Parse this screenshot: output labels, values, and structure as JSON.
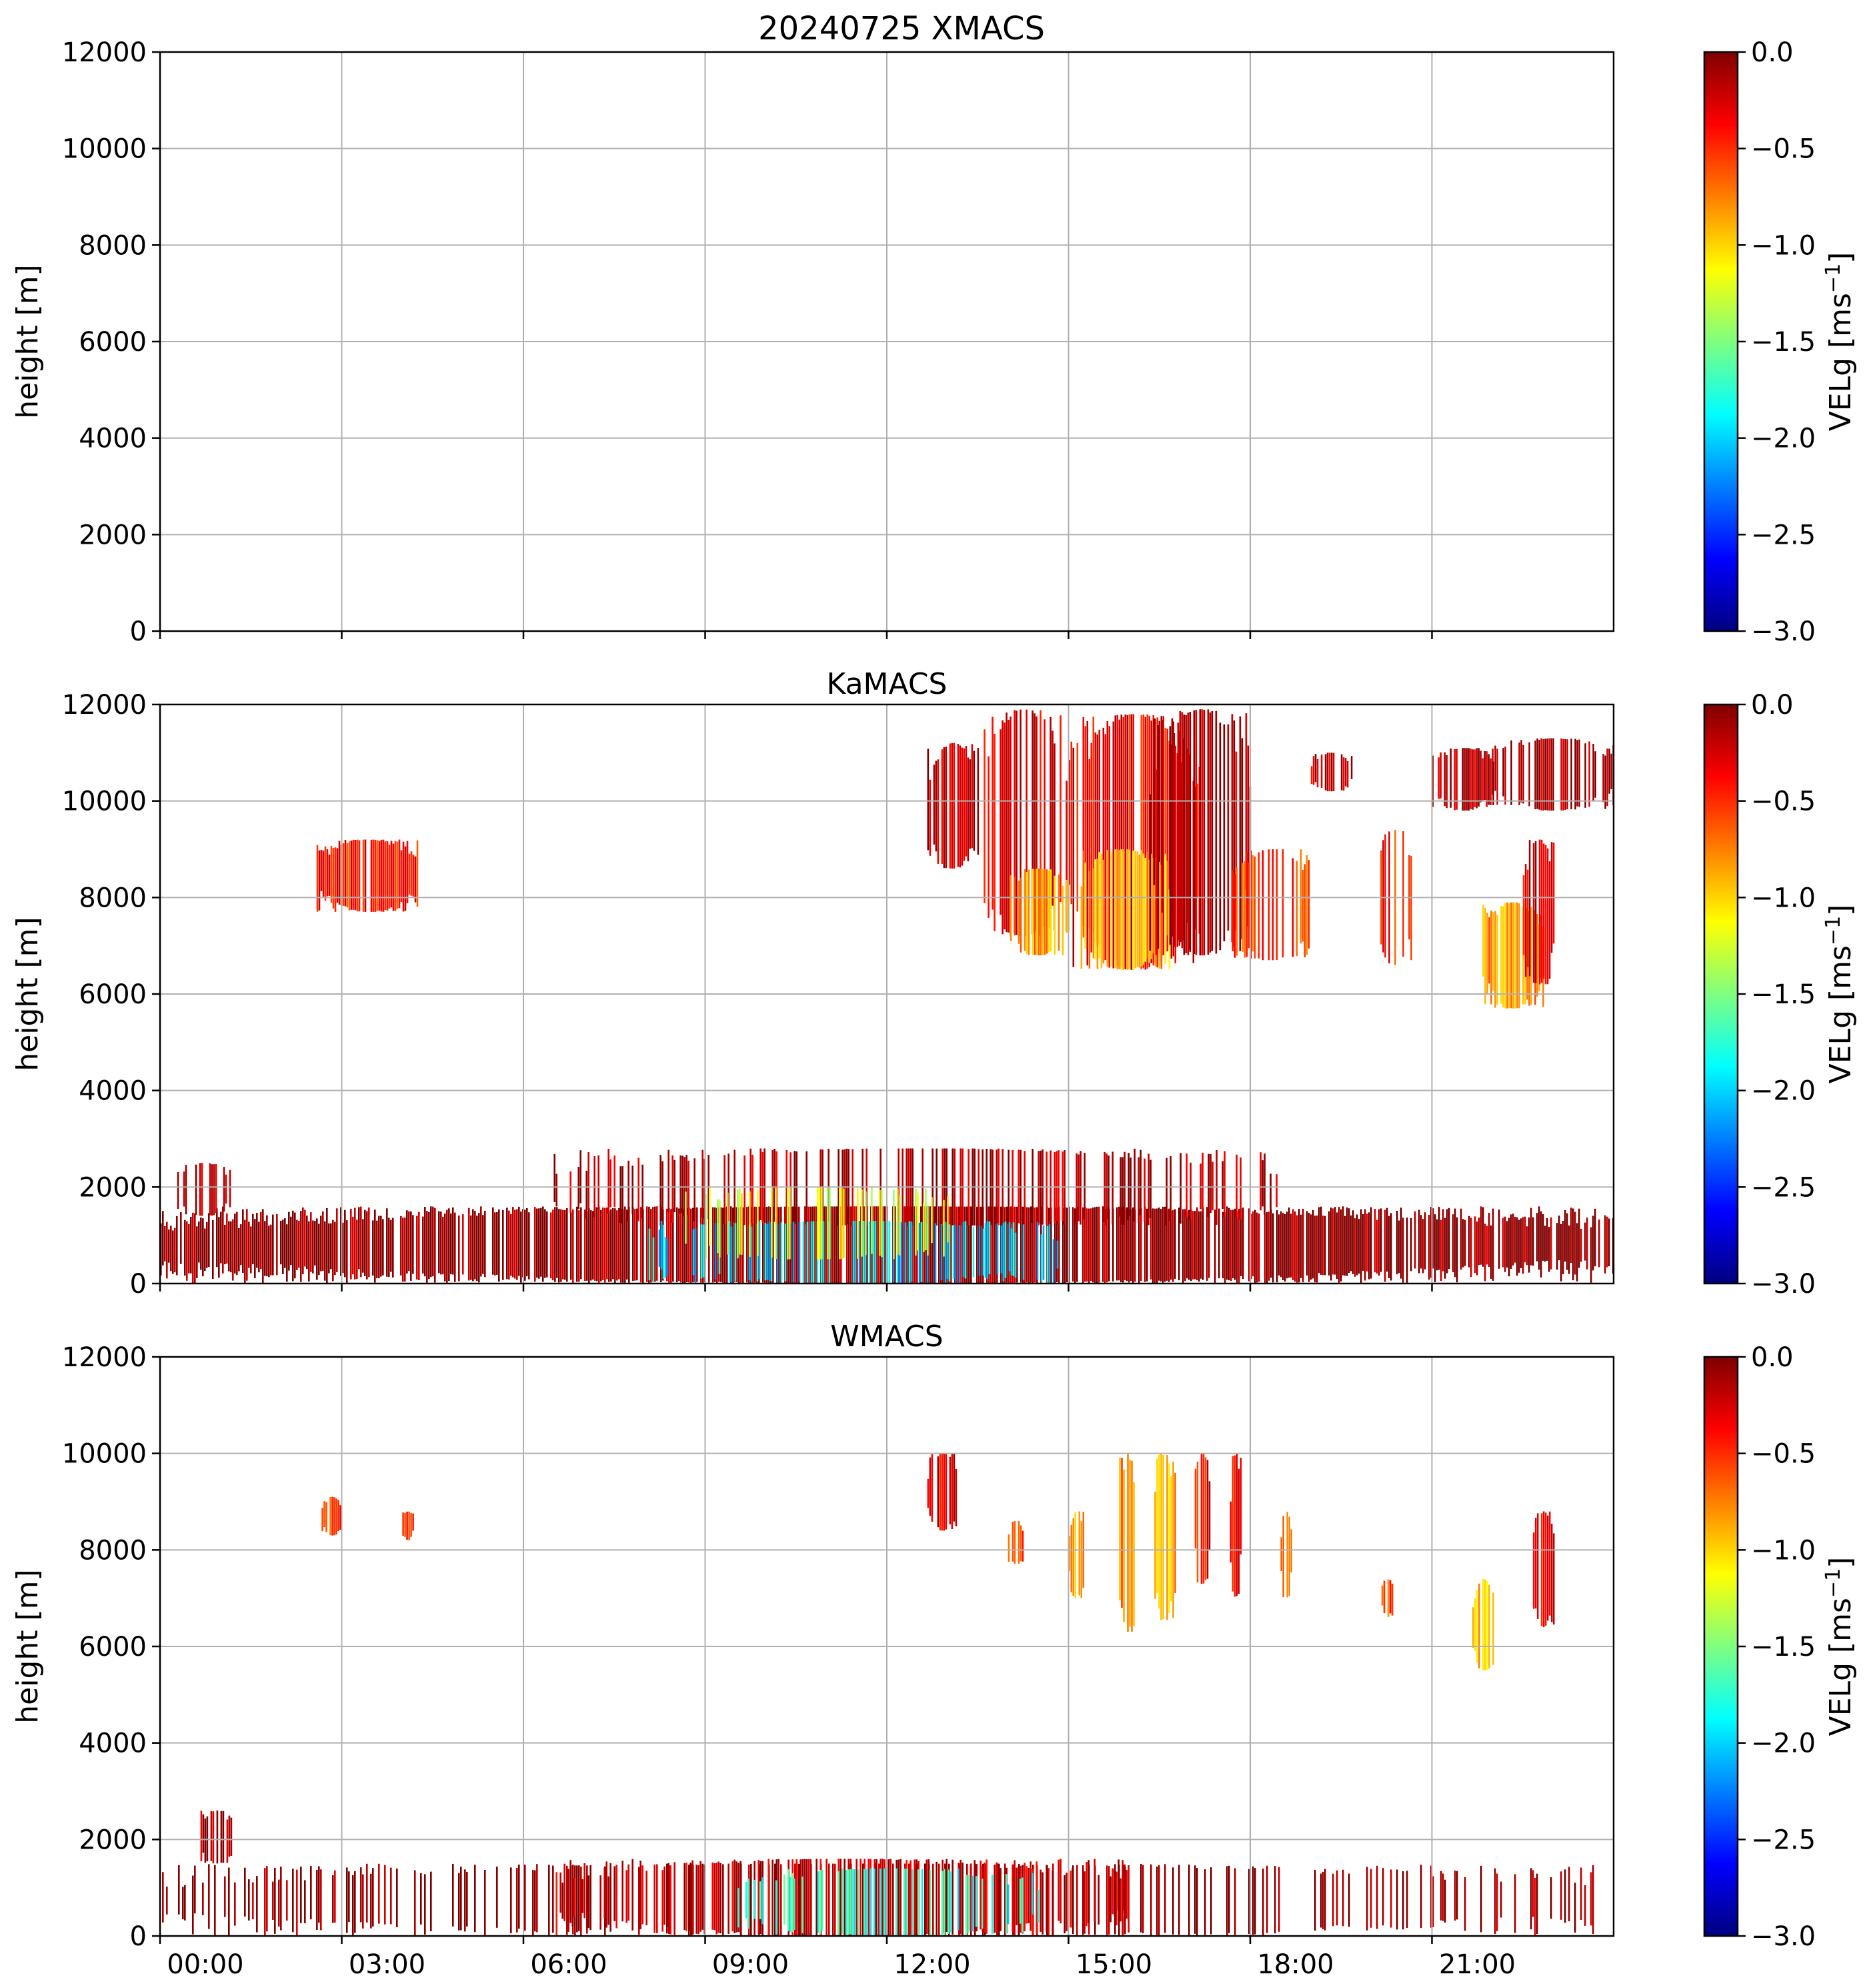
{
  "figure": {
    "title": "20240725 XMACS"
  },
  "colorbar": {
    "label_main": "VELg [ms",
    "label_exp": "−1",
    "label_close": "]",
    "ticks": [
      "0.0",
      "−0.5",
      "−1.0",
      "−1.5",
      "−2.0",
      "−2.5",
      "−3.0"
    ],
    "range": [
      -3.0,
      0.0
    ],
    "colormap": "jet",
    "colors": [
      "#00007f",
      "#0000ff",
      "#007fff",
      "#00ffff",
      "#7fff7f",
      "#ffff00",
      "#ff7f00",
      "#ff0000",
      "#7f0000"
    ]
  },
  "x_axis": {
    "ticks": [
      "00:00",
      "03:00",
      "06:00",
      "09:00",
      "12:00",
      "15:00",
      "18:00",
      "21:00"
    ]
  },
  "chart_data": [
    {
      "type": "heatmap",
      "title": "",
      "ylabel": "height [m]",
      "ylim": [
        0,
        12000
      ],
      "yticks": [
        "0",
        "2000",
        "4000",
        "6000",
        "8000",
        "10000",
        "12000"
      ],
      "xlim": [
        "00:00",
        "24:00"
      ],
      "grid": true,
      "features": []
    },
    {
      "type": "heatmap",
      "title": "KaMACS",
      "ylabel": "height [m]",
      "ylim": [
        0,
        12000
      ],
      "yticks": [
        "0",
        "2000",
        "4000",
        "6000",
        "8000",
        "10000",
        "12000"
      ],
      "xlim": [
        "00:00",
        "24:00"
      ],
      "grid": true,
      "features": [
        {
          "t0": "00:00",
          "t1": "24:00",
          "h0": 0,
          "h1": 1600,
          "v": -0.05,
          "density": 0.85
        },
        {
          "t0": "00:15",
          "t1": "01:10",
          "h0": 1400,
          "h1": 2500,
          "v": -0.2,
          "density": 0.5
        },
        {
          "t0": "06:30",
          "t1": "18:30",
          "h0": 1200,
          "h1": 2800,
          "v": -0.15,
          "density": 0.35
        },
        {
          "t0": "08:00",
          "t1": "14:50",
          "h0": 0,
          "h1": 1300,
          "v": -2.0,
          "density": 0.45
        },
        {
          "t0": "08:30",
          "t1": "13:00",
          "h0": 500,
          "h1": 2000,
          "v": -1.2,
          "density": 0.3
        },
        {
          "t0": "02:35",
          "t1": "04:15",
          "h0": 7700,
          "h1": 9200,
          "v": -0.4,
          "density": 0.9
        },
        {
          "t0": "12:40",
          "t1": "13:30",
          "h0": 8600,
          "h1": 11200,
          "v": -0.2,
          "density": 0.75
        },
        {
          "t0": "13:30",
          "t1": "15:00",
          "h0": 7200,
          "h1": 11900,
          "v": -0.3,
          "density": 0.55
        },
        {
          "t0": "14:00",
          "t1": "15:00",
          "h0": 6800,
          "h1": 8600,
          "v": -0.8,
          "density": 0.8
        },
        {
          "t0": "15:00",
          "t1": "17:10",
          "h0": 6500,
          "h1": 11800,
          "v": -0.35,
          "density": 0.85
        },
        {
          "t0": "15:10",
          "t1": "16:40",
          "h0": 6500,
          "h1": 9000,
          "v": -0.9,
          "density": 0.75
        },
        {
          "t0": "16:20",
          "t1": "18:00",
          "h0": 6800,
          "h1": 11900,
          "v": -0.15,
          "density": 0.7
        },
        {
          "t0": "17:40",
          "t1": "19:00",
          "h0": 6700,
          "h1": 9000,
          "v": -0.55,
          "density": 0.65
        },
        {
          "t0": "19:00",
          "t1": "19:40",
          "h0": 10200,
          "h1": 11000,
          "v": -0.2,
          "density": 0.65
        },
        {
          "t0": "20:05",
          "t1": "20:40",
          "h0": 6600,
          "h1": 9400,
          "v": -0.45,
          "density": 0.6
        },
        {
          "t0": "21:00",
          "t1": "22:00",
          "h0": 9800,
          "h1": 11100,
          "v": -0.15,
          "density": 0.7
        },
        {
          "t0": "21:50",
          "t1": "22:50",
          "h0": 5700,
          "h1": 7900,
          "v": -0.8,
          "density": 0.85
        },
        {
          "t0": "22:30",
          "t1": "23:00",
          "h0": 6200,
          "h1": 9200,
          "v": -0.25,
          "density": 0.85
        },
        {
          "t0": "22:00",
          "t1": "24:00",
          "h0": 9800,
          "h1": 11300,
          "v": -0.1,
          "density": 0.7
        }
      ]
    },
    {
      "type": "heatmap",
      "title": "WMACS",
      "ylabel": "height [m]",
      "ylim": [
        0,
        12000
      ],
      "yticks": [
        "0",
        "2000",
        "4000",
        "6000",
        "8000",
        "10000",
        "12000"
      ],
      "xlim": [
        "00:00",
        "24:00"
      ],
      "grid": true,
      "features": [
        {
          "t0": "00:00",
          "t1": "24:00",
          "h0": 0,
          "h1": 1500,
          "v": -0.05,
          "density": 0.25
        },
        {
          "t0": "06:30",
          "t1": "16:00",
          "h0": 0,
          "h1": 1600,
          "v": -0.2,
          "density": 0.55
        },
        {
          "t0": "09:30",
          "t1": "14:30",
          "h0": 0,
          "h1": 1400,
          "v": -1.8,
          "density": 0.35
        },
        {
          "t0": "00:40",
          "t1": "01:10",
          "h0": 1500,
          "h1": 2600,
          "v": -0.1,
          "density": 0.6
        },
        {
          "t0": "02:40",
          "t1": "03:00",
          "h0": 8300,
          "h1": 9100,
          "v": -0.5,
          "density": 0.9
        },
        {
          "t0": "04:00",
          "t1": "04:10",
          "h0": 8200,
          "h1": 8800,
          "v": -0.4,
          "density": 0.9
        },
        {
          "t0": "12:40",
          "t1": "13:10",
          "h0": 8400,
          "h1": 10000,
          "v": -0.3,
          "density": 0.7
        },
        {
          "t0": "14:00",
          "t1": "14:15",
          "h0": 7700,
          "h1": 8600,
          "v": -0.5,
          "density": 0.8
        },
        {
          "t0": "15:00",
          "t1": "15:15",
          "h0": 7000,
          "h1": 8800,
          "v": -0.8,
          "density": 0.85
        },
        {
          "t0": "15:50",
          "t1": "16:05",
          "h0": 6300,
          "h1": 10000,
          "v": -0.7,
          "density": 0.9
        },
        {
          "t0": "16:25",
          "t1": "16:45",
          "h0": 6500,
          "h1": 10000,
          "v": -0.9,
          "density": 0.9
        },
        {
          "t0": "17:05",
          "t1": "17:20",
          "h0": 7300,
          "h1": 10000,
          "v": -0.4,
          "density": 0.85
        },
        {
          "t0": "17:40",
          "t1": "17:50",
          "h0": 7000,
          "h1": 10000,
          "v": -0.35,
          "density": 0.85
        },
        {
          "t0": "18:30",
          "t1": "18:40",
          "h0": 7000,
          "h1": 8800,
          "v": -0.6,
          "density": 0.8
        },
        {
          "t0": "20:10",
          "t1": "20:20",
          "h0": 6600,
          "h1": 7400,
          "v": -0.6,
          "density": 0.8
        },
        {
          "t0": "21:40",
          "t1": "22:00",
          "h0": 5500,
          "h1": 7400,
          "v": -0.9,
          "density": 0.85
        },
        {
          "t0": "22:40",
          "t1": "23:00",
          "h0": 6400,
          "h1": 8800,
          "v": -0.35,
          "density": 0.85
        }
      ]
    }
  ]
}
